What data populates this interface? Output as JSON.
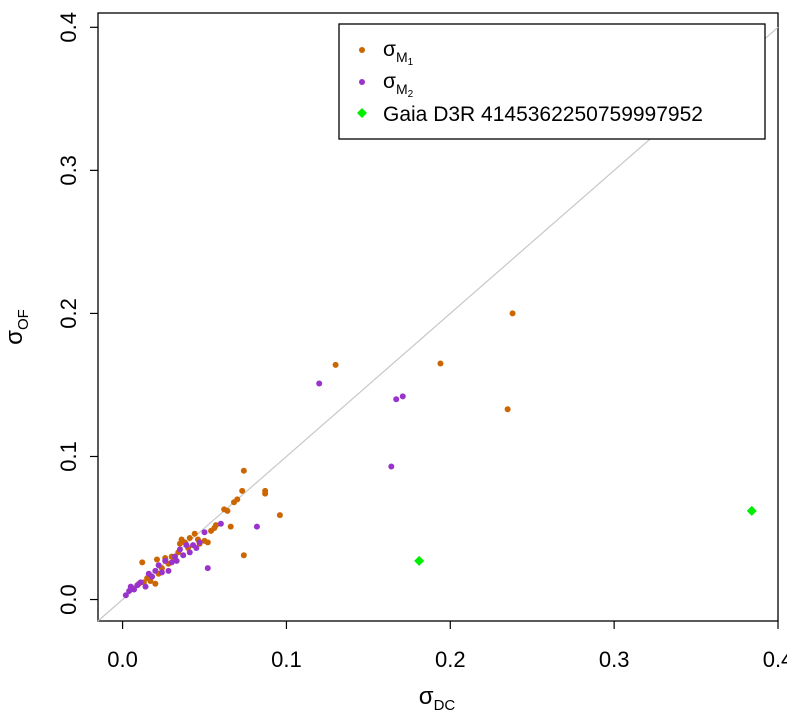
{
  "chart_data": {
    "type": "scatter",
    "xlabel": {
      "base": "σ",
      "sub": "DC"
    },
    "ylabel": {
      "base": "σ",
      "sub": "OF"
    },
    "xlim": [
      -0.015,
      0.4
    ],
    "ylim": [
      -0.015,
      0.41
    ],
    "x_ticks": [
      "0.0",
      "0.1",
      "0.2",
      "0.3",
      "0.4"
    ],
    "y_ticks": [
      "0.0",
      "0.1",
      "0.2",
      "0.3",
      "0.4"
    ],
    "reference_line": "y = x",
    "legend_position": "top-right",
    "series": [
      {
        "name": "σM1",
        "label_base": "σ",
        "label_sub": "M",
        "label_subsub": "1",
        "color": "#cc6600",
        "marker": "circle",
        "points": [
          [
            0.006,
            0.008
          ],
          [
            0.01,
            0.011
          ],
          [
            0.012,
            0.026
          ],
          [
            0.013,
            0.012
          ],
          [
            0.015,
            0.015
          ],
          [
            0.017,
            0.013
          ],
          [
            0.02,
            0.011
          ],
          [
            0.021,
            0.028
          ],
          [
            0.022,
            0.018
          ],
          [
            0.024,
            0.022
          ],
          [
            0.026,
            0.029
          ],
          [
            0.028,
            0.025
          ],
          [
            0.03,
            0.03
          ],
          [
            0.032,
            0.028
          ],
          [
            0.034,
            0.033
          ],
          [
            0.035,
            0.039
          ],
          [
            0.036,
            0.042
          ],
          [
            0.038,
            0.04
          ],
          [
            0.04,
            0.036
          ],
          [
            0.041,
            0.043
          ],
          [
            0.044,
            0.046
          ],
          [
            0.046,
            0.042
          ],
          [
            0.047,
            0.039
          ],
          [
            0.05,
            0.041
          ],
          [
            0.052,
            0.04
          ],
          [
            0.054,
            0.048
          ],
          [
            0.056,
            0.05
          ],
          [
            0.057,
            0.052
          ],
          [
            0.062,
            0.063
          ],
          [
            0.064,
            0.062
          ],
          [
            0.066,
            0.051
          ],
          [
            0.068,
            0.068
          ],
          [
            0.07,
            0.07
          ],
          [
            0.073,
            0.076
          ],
          [
            0.074,
            0.09
          ],
          [
            0.074,
            0.031
          ],
          [
            0.087,
            0.074
          ],
          [
            0.087,
            0.076
          ],
          [
            0.096,
            0.059
          ],
          [
            0.13,
            0.164
          ],
          [
            0.194,
            0.165
          ],
          [
            0.235,
            0.133
          ],
          [
            0.238,
            0.2
          ]
        ]
      },
      {
        "name": "σM2",
        "label_base": "σ",
        "label_sub": "M",
        "label_subsub": "2",
        "color": "#9933cc",
        "marker": "circle",
        "points": [
          [
            0.002,
            0.003
          ],
          [
            0.004,
            0.006
          ],
          [
            0.005,
            0.009
          ],
          [
            0.007,
            0.007
          ],
          [
            0.009,
            0.01
          ],
          [
            0.011,
            0.012
          ],
          [
            0.014,
            0.009
          ],
          [
            0.016,
            0.018
          ],
          [
            0.018,
            0.016
          ],
          [
            0.02,
            0.02
          ],
          [
            0.022,
            0.024
          ],
          [
            0.024,
            0.019
          ],
          [
            0.026,
            0.027
          ],
          [
            0.028,
            0.02
          ],
          [
            0.03,
            0.026
          ],
          [
            0.032,
            0.03
          ],
          [
            0.033,
            0.027
          ],
          [
            0.035,
            0.035
          ],
          [
            0.037,
            0.031
          ],
          [
            0.039,
            0.038
          ],
          [
            0.041,
            0.033
          ],
          [
            0.043,
            0.038
          ],
          [
            0.045,
            0.036
          ],
          [
            0.047,
            0.04
          ],
          [
            0.05,
            0.047
          ],
          [
            0.052,
            0.022
          ],
          [
            0.06,
            0.053
          ],
          [
            0.082,
            0.051
          ],
          [
            0.12,
            0.151
          ],
          [
            0.164,
            0.093
          ],
          [
            0.167,
            0.14
          ],
          [
            0.171,
            0.142
          ]
        ]
      },
      {
        "name": "Gaia D3R 4145362250759997952",
        "color": "#00ee00",
        "marker": "diamond",
        "points": [
          [
            0.181,
            0.027
          ],
          [
            0.384,
            0.062
          ]
        ]
      }
    ]
  }
}
